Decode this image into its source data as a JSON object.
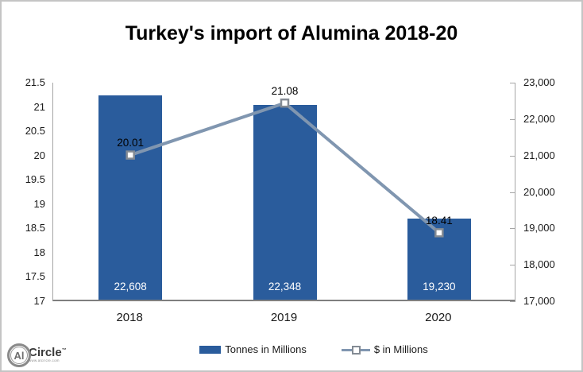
{
  "title": "Turkey's import of Alumina 2018-20",
  "chart_data": {
    "type": "bar",
    "subtype": "combo-bar-line",
    "title": "Turkey's import of Alumina 2018-20",
    "categories": [
      "2018",
      "2019",
      "2020"
    ],
    "series": [
      {
        "name": "Tonnes in Millions",
        "type": "bar",
        "axis": "right",
        "values": [
          22608,
          22348,
          19230
        ],
        "data_labels": [
          "22,608",
          "22,348",
          "19,230"
        ],
        "color": "#2A5C9C"
      },
      {
        "name": "$ in Millions",
        "type": "line",
        "axis": "left",
        "values": [
          20.01,
          21.08,
          18.41
        ],
        "data_labels": [
          "20.01",
          "21.08",
          "18.41"
        ],
        "color": "#8096B0",
        "marker": "square-white-fill"
      }
    ],
    "left_axis": {
      "min": 17,
      "max": 21.5,
      "step": 0.5,
      "tick_labels": [
        "21.5",
        "21",
        "20.5",
        "20",
        "19.5",
        "19",
        "18.5",
        "18",
        "17.5",
        "17"
      ]
    },
    "right_axis": {
      "min": 17000,
      "max": 23000,
      "step": 1000,
      "tick_labels": [
        "23,000",
        "22,000",
        "21,000",
        "20,000",
        "19,000",
        "18,000",
        "17,000"
      ]
    },
    "grid": false,
    "legend_position": "bottom"
  },
  "legend": {
    "items": [
      {
        "label": "Tonnes in Millions",
        "swatch": "bar",
        "color": "#2A5C9C"
      },
      {
        "label": "$ in Millions",
        "swatch": "line-marker",
        "color": "#8096B0"
      }
    ]
  },
  "logo": {
    "monogram": "Al",
    "name": "Circle",
    "trademark": "™",
    "url": "www.alcircle.com"
  },
  "colors": {
    "bar": "#2A5C9C",
    "line": "#8096B0",
    "marker_border": "#848B94",
    "axis_line": "#A6A6A6",
    "x_axis_line": "#7F7F7F",
    "bar_label_text": "#FFFFFF",
    "page_border": "#C4C4C4"
  }
}
